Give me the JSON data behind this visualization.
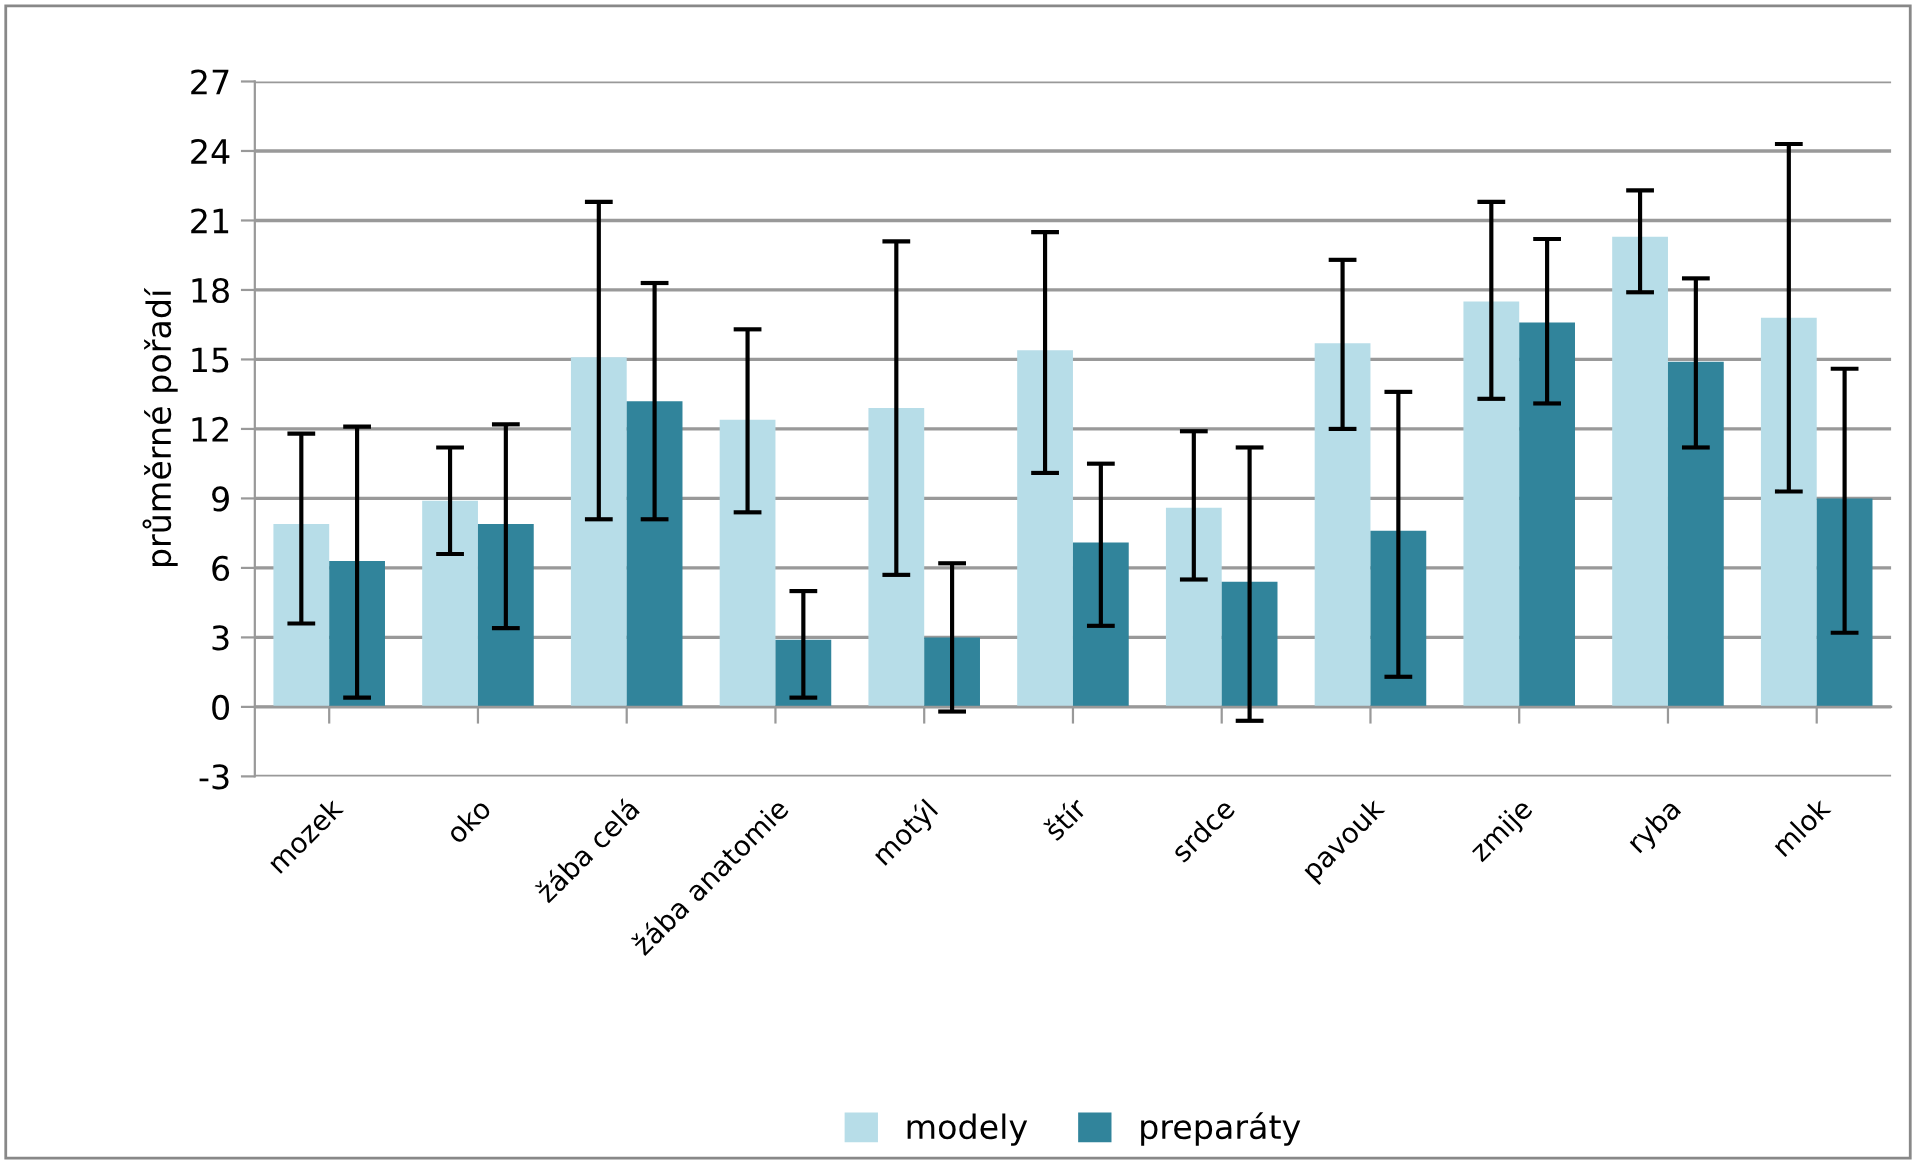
{
  "chart_data": {
    "type": "bar",
    "ylabel": "průměrné pořadí",
    "categories": [
      "mozek",
      "oko",
      "žába celá",
      "žába anatomie",
      "motýl",
      "štír",
      "srdce",
      "pavouk",
      "zmije",
      "ryba",
      "mlok"
    ],
    "series": [
      {
        "name": "modely",
        "color": "#b7dde8",
        "values": [
          7.9,
          8.9,
          15.1,
          12.4,
          12.9,
          15.4,
          8.6,
          15.7,
          17.5,
          20.3,
          16.8
        ],
        "errors": [
          [
            3.6,
            11.8
          ],
          [
            6.6,
            11.2
          ],
          [
            8.1,
            21.8
          ],
          [
            8.4,
            16.3
          ],
          [
            5.7,
            20.1
          ],
          [
            10.1,
            20.5
          ],
          [
            5.5,
            11.9
          ],
          [
            12.0,
            19.3
          ],
          [
            13.3,
            21.8
          ],
          [
            17.9,
            22.3
          ],
          [
            9.3,
            24.3
          ]
        ]
      },
      {
        "name": "preparáty",
        "color": "#31849b",
        "values": [
          6.3,
          7.9,
          13.2,
          2.9,
          3.0,
          7.1,
          5.4,
          7.6,
          16.6,
          14.9,
          9.0
        ],
        "errors": [
          [
            0.4,
            12.1
          ],
          [
            3.4,
            12.2
          ],
          [
            8.1,
            18.3
          ],
          [
            0.4,
            5.0
          ],
          [
            -0.2,
            6.2
          ],
          [
            3.5,
            10.5
          ],
          [
            -0.6,
            11.2
          ],
          [
            1.3,
            13.6
          ],
          [
            13.1,
            20.2
          ],
          [
            11.2,
            18.5
          ],
          [
            3.2,
            14.6
          ]
        ]
      }
    ],
    "ylim": [
      -3,
      27
    ],
    "yticks": [
      -3,
      0,
      3,
      6,
      9,
      12,
      15,
      18,
      21,
      24,
      27
    ],
    "grid": "y",
    "legend": "bottom"
  }
}
